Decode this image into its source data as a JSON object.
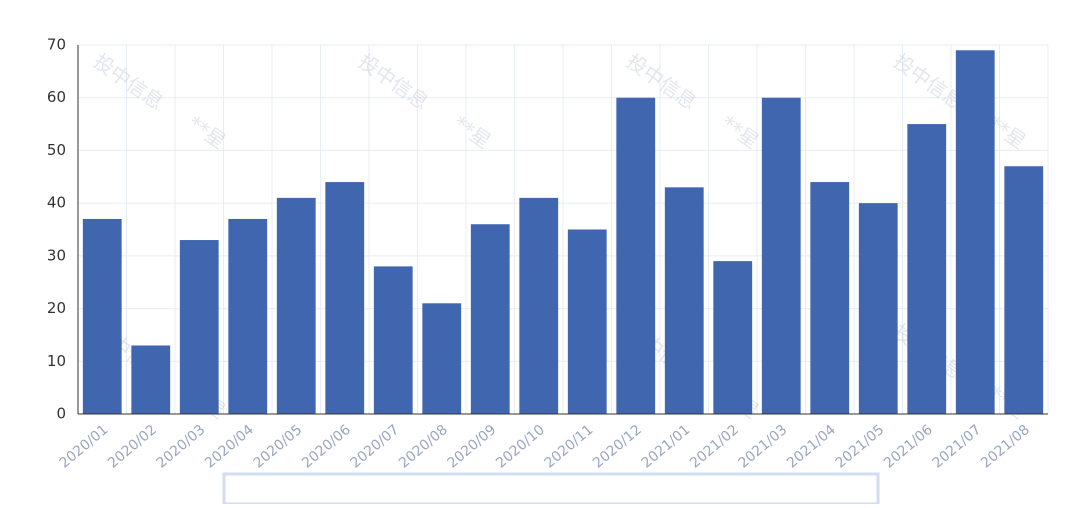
{
  "chart_data": {
    "type": "bar",
    "categories": [
      "2020/01",
      "2020/02",
      "2020/03",
      "2020/04",
      "2020/05",
      "2020/06",
      "2020/07",
      "2020/08",
      "2020/09",
      "2020/10",
      "2020/11",
      "2020/12",
      "2021/01",
      "2021/02",
      "2021/03",
      "2021/04",
      "2021/05",
      "2021/06",
      "2021/07",
      "2021/08"
    ],
    "values": [
      37,
      13,
      33,
      37,
      41,
      44,
      28,
      21,
      36,
      41,
      35,
      60,
      43,
      29,
      60,
      44,
      40,
      55,
      69,
      47
    ],
    "color": "#4166b0",
    "ylim": [
      0,
      70
    ],
    "yticks": [
      0,
      10,
      20,
      30,
      40,
      50,
      60,
      70
    ],
    "grid": true,
    "watermark": [
      "投中信息",
      "**星"
    ]
  }
}
